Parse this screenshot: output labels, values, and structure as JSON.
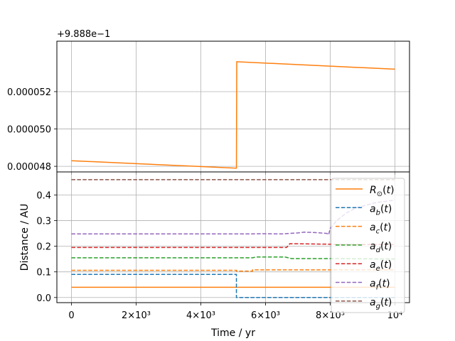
{
  "chart_data": [
    {
      "type": "line",
      "offset_text": "+9.888e−1",
      "xlim": [
        -450,
        10450
      ],
      "ylim": [
        4.77e-05,
        5.47e-05
      ],
      "grid": true,
      "yticks": [
        {
          "value": 4.8e-05,
          "label": "0.000048"
        },
        {
          "value": 5e-05,
          "label": "0.000050"
        },
        {
          "value": 5.2e-05,
          "label": "0.000052"
        }
      ],
      "series": [
        {
          "key": "R_sun",
          "color": "#ff7f0e",
          "dash": "solid",
          "x": [
            0,
            5100,
            5110,
            10000
          ],
          "y": [
            4.83e-05,
            4.79e-05,
            5.36e-05,
            5.32e-05
          ]
        }
      ]
    },
    {
      "type": "line",
      "xlim": [
        -450,
        10450
      ],
      "ylim": [
        -0.02,
        0.49
      ],
      "grid": true,
      "xlabel": "Time / yr",
      "ylabel": "Distance / AU",
      "xticks": [
        {
          "value": 0,
          "label": "0"
        },
        {
          "value": 2000,
          "label": "2×10³"
        },
        {
          "value": 4000,
          "label": "4×10³"
        },
        {
          "value": 6000,
          "label": "6×10³"
        },
        {
          "value": 8000,
          "label": "8×10³"
        },
        {
          "value": 10000,
          "label": "10⁴"
        }
      ],
      "yticks": [
        {
          "value": 0.0,
          "label": "0.0"
        },
        {
          "value": 0.1,
          "label": "0.1"
        },
        {
          "value": 0.2,
          "label": "0.2"
        },
        {
          "value": 0.3,
          "label": "0.3"
        },
        {
          "value": 0.4,
          "label": "0.4"
        }
      ],
      "legend_placement": "right",
      "series": [
        {
          "key": "R_sun",
          "base": "R",
          "sub": "⊙",
          "color": "#ff7f0e",
          "dash": "solid",
          "x": [
            0,
            10000
          ],
          "y": [
            0.04,
            0.04
          ]
        },
        {
          "key": "a_b",
          "base": "a",
          "sub": "b",
          "color": "#1f77b4",
          "dash": "dashed",
          "x": [
            0,
            5100,
            5100,
            10000
          ],
          "y": [
            0.09,
            0.09,
            0.0,
            0.0
          ]
        },
        {
          "key": "a_c",
          "base": "a",
          "sub": "c",
          "color": "#ff7f0e",
          "dash": "dashed",
          "x": [
            0,
            5100,
            5100,
            5600,
            5600,
            10000
          ],
          "y": [
            0.106,
            0.106,
            0.103,
            0.103,
            0.108,
            0.108
          ]
        },
        {
          "key": "a_d",
          "base": "a",
          "sub": "d",
          "color": "#2ca02c",
          "dash": "dashed",
          "x": [
            0,
            5600,
            5700,
            6600,
            6800,
            8000,
            10000
          ],
          "y": [
            0.155,
            0.155,
            0.158,
            0.158,
            0.152,
            0.152,
            0.15
          ]
        },
        {
          "key": "a_e",
          "base": "a",
          "sub": "e",
          "color": "#d62728",
          "dash": "dashed",
          "x": [
            0,
            6650,
            6750,
            8000,
            8100,
            10000
          ],
          "y": [
            0.195,
            0.195,
            0.21,
            0.208,
            0.207,
            0.207
          ]
        },
        {
          "key": "a_f",
          "base": "a",
          "sub": "f",
          "color": "#9467bd",
          "dash": "dashed",
          "x": [
            0,
            5500,
            6000,
            6500,
            7000,
            7200,
            7600,
            7900,
            7950,
            8000,
            8200,
            8500,
            8800,
            9100,
            9400,
            10000
          ],
          "y": [
            0.248,
            0.248,
            0.249,
            0.248,
            0.252,
            0.255,
            0.253,
            0.25,
            0.245,
            0.27,
            0.3,
            0.33,
            0.35,
            0.36,
            0.37,
            0.38
          ]
        },
        {
          "key": "a_g",
          "base": "a",
          "sub": "g",
          "color": "#8c564b",
          "dash": "dashed",
          "x": [
            0,
            10000
          ],
          "y": [
            0.46,
            0.46
          ]
        }
      ]
    }
  ]
}
